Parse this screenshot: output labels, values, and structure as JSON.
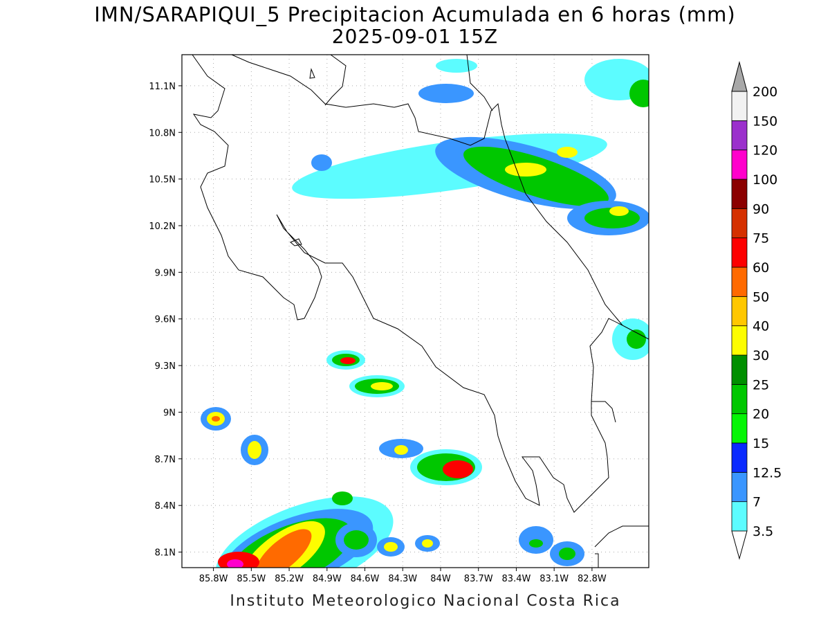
{
  "header": {
    "title_line1": "IMN/SARAPIQUI_5 Precipitacion Acumulada en 6 horas (mm)",
    "title_line2": "2025-09-01 15Z"
  },
  "footer": {
    "credit": "Instituto Meteorologico Nacional Costa Rica"
  },
  "map": {
    "lon_range": [
      -86.05,
      -82.35
    ],
    "lat_range": [
      8.0,
      11.3
    ],
    "lat_ticks": [
      "11.1N",
      "10.8N",
      "10.5N",
      "10.2N",
      "9.9N",
      "9.6N",
      "9.3N",
      "9N",
      "8.7N",
      "8.4N",
      "8.1N"
    ],
    "lat_values": [
      11.1,
      10.8,
      10.5,
      10.2,
      9.9,
      9.6,
      9.3,
      9.0,
      8.7,
      8.4,
      8.1
    ],
    "lon_ticks": [
      "85.8W",
      "85.5W",
      "85.2W",
      "84.9W",
      "84.6W",
      "84.3W",
      "84W",
      "83.7W",
      "83.4W",
      "83.1W",
      "82.8W"
    ],
    "lon_values": [
      -85.8,
      -85.5,
      -85.2,
      -84.9,
      -84.6,
      -84.3,
      -84.0,
      -83.7,
      -83.4,
      -83.1,
      -82.8
    ]
  },
  "colorbar": {
    "labels": [
      "3.5",
      "7",
      "12.5",
      "15",
      "20",
      "25",
      "30",
      "40",
      "50",
      "60",
      "75",
      "90",
      "100",
      "120",
      "150",
      "200"
    ],
    "colors": [
      "#5cfcff",
      "#3a96ff",
      "#0a2aff",
      "#05f505",
      "#00c700",
      "#008f00",
      "#fdfd00",
      "#ffc700",
      "#ff6a00",
      "#fd0000",
      "#d53000",
      "#8b0000",
      "#ff00cc",
      "#9b30cc",
      "#f2f2f2",
      "#a8a8a8"
    ]
  }
}
